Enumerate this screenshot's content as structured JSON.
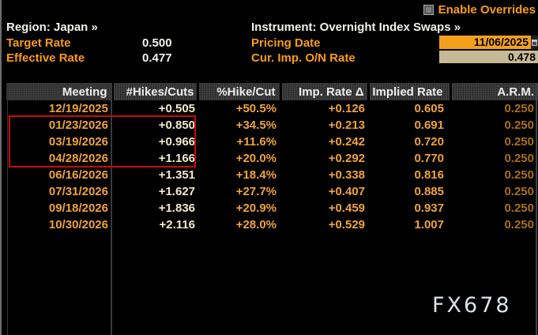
{
  "header": {
    "enable_overrides_label": "Enable Overrides",
    "region_link": "Region: Japan »",
    "instrument_link": "Instrument: Overnight Index Swaps »",
    "target_rate_label": "Target Rate",
    "target_rate_value": "0.500",
    "effective_rate_label": "Effective Rate",
    "effective_rate_value": "0.477",
    "pricing_date_label": "Pricing Date",
    "pricing_date_value": "11/06/2025",
    "cur_imp_on_rate_label": "Cur. Imp. O/N Rate",
    "cur_imp_on_rate_value": "0.478"
  },
  "table": {
    "columns": [
      "Meeting",
      "#Hikes/Cuts",
      "%Hike/Cut",
      "Imp. Rate Δ",
      "Implied Rate",
      "A.R.M."
    ],
    "rows": [
      [
        "12/19/2025",
        "+0.505",
        "+50.5%",
        "+0.126",
        "0.605",
        "0.250"
      ],
      [
        "01/23/2026",
        "+0.850",
        "+34.5%",
        "+0.213",
        "0.691",
        "0.250"
      ],
      [
        "03/19/2026",
        "+0.966",
        "+11.6%",
        "+0.242",
        "0.720",
        "0.250"
      ],
      [
        "04/28/2026",
        "+1.166",
        "+20.0%",
        "+0.292",
        "0.770",
        "0.250"
      ],
      [
        "06/16/2026",
        "+1.351",
        "+18.4%",
        "+0.338",
        "0.816",
        "0.250"
      ],
      [
        "07/31/2026",
        "+1.627",
        "+27.7%",
        "+0.407",
        "0.885",
        "0.250"
      ],
      [
        "09/18/2026",
        "+1.836",
        "+20.9%",
        "+0.459",
        "0.937",
        "0.250"
      ],
      [
        "10/30/2026",
        "+2.116",
        "+28.0%",
        "+0.529",
        "1.007",
        "0.250"
      ]
    ],
    "highlighted_meetings": [
      "01/23/2026",
      "03/19/2026",
      "04/28/2026"
    ]
  },
  "watermark": "FX678",
  "colors": {
    "amber_label": "#fb9c16",
    "table_amber": "#f0a339",
    "hikes_cream": "#f1e9cd",
    "arm_dim_amber": "#aa6f12",
    "white_text": "#f2f2ec",
    "pricing_date_bg": "#f5a01d",
    "cur_imp_rate_bg": "#c6b996",
    "highlight_red": "#c60c0c"
  }
}
